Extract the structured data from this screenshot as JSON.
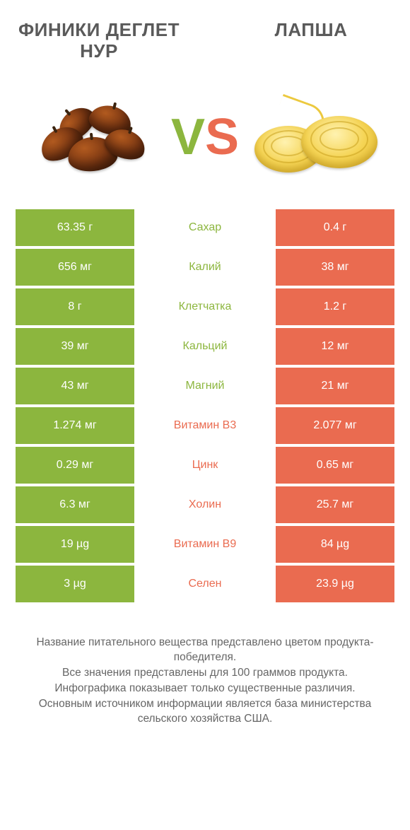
{
  "colors": {
    "green": "#8cb63e",
    "orange": "#ea6b50",
    "text": "#5a5a5a"
  },
  "header": {
    "left_title": "ФИНИКИ ДЕГЛЕТ НУР",
    "right_title": "ЛАПША"
  },
  "vs": {
    "v": "V",
    "s": "S"
  },
  "rows": [
    {
      "left": "63.35 г",
      "label": "Сахар",
      "right": "0.4 г",
      "winner": "left"
    },
    {
      "left": "656 мг",
      "label": "Калий",
      "right": "38 мг",
      "winner": "left"
    },
    {
      "left": "8 г",
      "label": "Клетчатка",
      "right": "1.2 г",
      "winner": "left"
    },
    {
      "left": "39 мг",
      "label": "Кальций",
      "right": "12 мг",
      "winner": "left"
    },
    {
      "left": "43 мг",
      "label": "Магний",
      "right": "21 мг",
      "winner": "left"
    },
    {
      "left": "1.274 мг",
      "label": "Витамин B3",
      "right": "2.077 мг",
      "winner": "right"
    },
    {
      "left": "0.29 мг",
      "label": "Цинк",
      "right": "0.65 мг",
      "winner": "right"
    },
    {
      "left": "6.3 мг",
      "label": "Холин",
      "right": "25.7 мг",
      "winner": "right"
    },
    {
      "left": "19 µg",
      "label": "Витамин B9",
      "right": "84 µg",
      "winner": "right"
    },
    {
      "left": "3 µg",
      "label": "Селен",
      "right": "23.9 µg",
      "winner": "right"
    }
  ],
  "footer": {
    "l1": "Название питательного вещества представлено цветом продукта-победителя.",
    "l2": "Все значения представлены для 100 граммов продукта.",
    "l3": "Инфографика показывает только существенные различия.",
    "l4": "Основным источником информации является база министерства сельского хозяйства США."
  }
}
